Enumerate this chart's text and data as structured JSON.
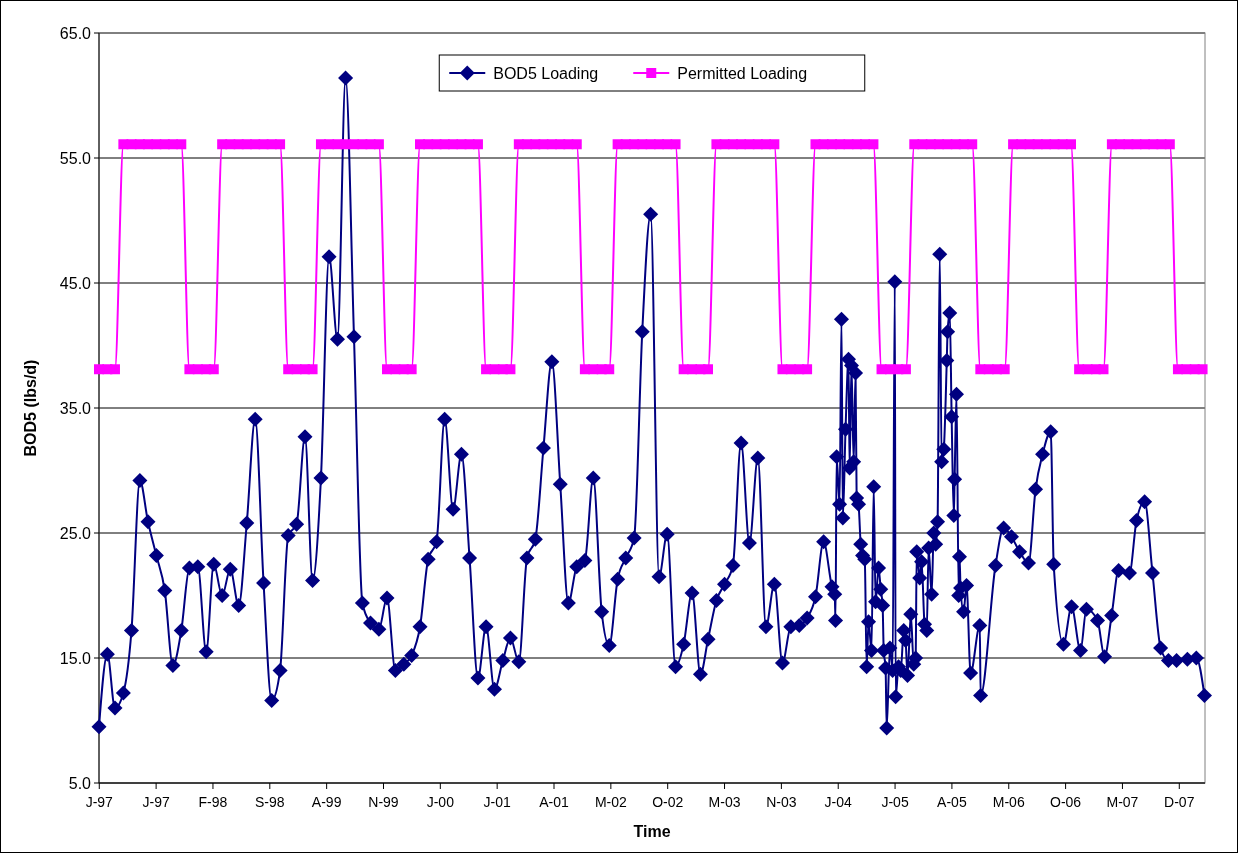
{
  "chart_data": {
    "type": "line",
    "xlabel": "Time",
    "ylabel": "BOD5 (lbs/d)",
    "xlim": [
      "1997-01-01",
      "2008-03-10"
    ],
    "ylim": [
      5,
      65
    ],
    "xticks": [
      {
        "value": "1997-01-02",
        "label": "J-97"
      },
      {
        "value": "1997-07-31",
        "label": "J-97"
      },
      {
        "value": "1998-02-26",
        "label": "F-98"
      },
      {
        "value": "1998-09-24",
        "label": "S-98"
      },
      {
        "value": "1999-04-22",
        "label": "A-99"
      },
      {
        "value": "1999-11-18",
        "label": "N-99"
      },
      {
        "value": "2000-06-15",
        "label": "J-00"
      },
      {
        "value": "2001-01-11",
        "label": "J-01"
      },
      {
        "value": "2001-08-09",
        "label": "A-01"
      },
      {
        "value": "2002-03-07",
        "label": "M-02"
      },
      {
        "value": "2002-10-03",
        "label": "O-02"
      },
      {
        "value": "2003-05-01",
        "label": "M-03"
      },
      {
        "value": "2003-11-27",
        "label": "N-03"
      },
      {
        "value": "2004-06-24",
        "label": "J-04"
      },
      {
        "value": "2005-01-20",
        "label": "J-05"
      },
      {
        "value": "2005-08-18",
        "label": "A-05"
      },
      {
        "value": "2006-03-16",
        "label": "M-06"
      },
      {
        "value": "2006-10-12",
        "label": "O-06"
      },
      {
        "value": "2007-05-10",
        "label": "M-07"
      },
      {
        "value": "2007-12-06",
        "label": "D-07"
      }
    ],
    "yticks": [
      {
        "value": 5,
        "label": "5.0"
      },
      {
        "value": 15,
        "label": "15.0"
      },
      {
        "value": 25,
        "label": "25.0"
      },
      {
        "value": 35,
        "label": "35.0"
      },
      {
        "value": 45,
        "label": "45.0"
      },
      {
        "value": 55,
        "label": "55.0"
      },
      {
        "value": 65,
        "label": "65.0"
      }
    ],
    "grid": "y",
    "legend": "top",
    "line_style": "solid",
    "x": [
      "1997-01",
      "1997-02",
      "1997-03",
      "1997-04",
      "1997-05",
      "1997-06",
      "1997-07",
      "1997-08",
      "1997-09",
      "1997-10",
      "1997-11",
      "1997-12",
      "1998-01",
      "1998-02",
      "1998-03",
      "1998-04",
      "1998-05",
      "1998-06",
      "1998-07",
      "1998-08",
      "1998-09",
      "1998-10",
      "1998-11",
      "1998-12",
      "1999-01",
      "1999-02",
      "1999-03",
      "1999-04",
      "1999-05",
      "1999-06",
      "1999-07",
      "1999-08",
      "1999-09",
      "1999-10",
      "1999-11",
      "1999-12",
      "2000-01",
      "2000-02",
      "2000-03",
      "2000-04",
      "2000-05",
      "2000-06",
      "2000-07",
      "2000-08",
      "2000-09",
      "2000-10",
      "2000-11",
      "2000-12",
      "2001-01",
      "2001-02",
      "2001-03",
      "2001-04",
      "2001-05",
      "2001-06",
      "2001-07",
      "2001-08",
      "2001-09",
      "2001-10",
      "2001-11",
      "2001-12",
      "2002-01",
      "2002-02",
      "2002-03",
      "2002-04",
      "2002-05",
      "2002-06",
      "2002-07",
      "2002-08",
      "2002-09",
      "2002-10",
      "2002-11",
      "2002-12",
      "2003-01",
      "2003-02",
      "2003-03",
      "2003-04",
      "2003-05",
      "2003-06",
      "2003-07",
      "2003-08",
      "2003-09",
      "2003-10",
      "2003-11",
      "2003-12",
      "2004-01",
      "2004-02",
      "2004-03",
      "2004-04",
      "2004-05",
      "2004-06",
      "2004-07",
      "2004-08",
      "2004-09",
      "2004-10",
      "2004-11",
      "2004-12",
      "2005-01",
      "2005-02",
      "2005-03",
      "2005-04",
      "2005-05",
      "2005-06",
      "2005-07",
      "2005-08",
      "2005-09",
      "2005-10",
      "2005-11",
      "2005-12",
      "2006-01",
      "2006-02",
      "2006-03",
      "2006-04",
      "2006-05",
      "2006-06",
      "2006-07",
      "2006-08",
      "2006-09",
      "2006-10",
      "2006-11",
      "2006-12",
      "2007-01",
      "2007-02",
      "2007-03",
      "2007-04",
      "2007-05",
      "2007-06",
      "2007-07",
      "2007-08",
      "2007-09",
      "2007-10",
      "2007-11",
      "2007-12",
      "2008-01",
      "2008-02",
      "2008-03"
    ],
    "series": [
      {
        "name": "BOD5 Loading",
        "color": "#000080",
        "marker": "diamond",
        "x": [
          "1997-01",
          "1997-02",
          "1997-03",
          "1997-04",
          "1997-05",
          "1997-06",
          "1997-07",
          "1997-08",
          "1997-09",
          "1997-10",
          "1997-11",
          "1997-12",
          "1998-01",
          "1998-02",
          "1998-03",
          "1998-04",
          "1998-05",
          "1998-06",
          "1998-07",
          "1998-08",
          "1998-09",
          "1998-10",
          "1998-11",
          "1998-12",
          "1999-01",
          "1999-02",
          "1999-03",
          "1999-04",
          "1999-05",
          "1999-06",
          "1999-07",
          "1999-08",
          "1999-09",
          "1999-10",
          "1999-11",
          "1999-12",
          "2000-01",
          "2000-02",
          "2000-03",
          "2000-04",
          "2000-05",
          "2000-06",
          "2000-07",
          "2000-08",
          "2000-09",
          "2000-10",
          "2000-11",
          "2000-12",
          "2001-01",
          "2001-02",
          "2001-03",
          "2001-04",
          "2001-05",
          "2001-06",
          "2001-07",
          "2001-08",
          "2001-09",
          "2001-10",
          "2001-11",
          "2001-12",
          "2002-01",
          "2002-02",
          "2002-03",
          "2002-04",
          "2002-05",
          "2002-06",
          "2002-07",
          "2002-08",
          "2002-09",
          "2002-10",
          "2002-11",
          "2002-12",
          "2003-01",
          "2003-02",
          "2003-03",
          "2003-04",
          "2003-05",
          "2003-06",
          "2003-07",
          "2003-08",
          "2003-09",
          "2003-10",
          "2003-11",
          "2003-12",
          "2004-01",
          "2004-02",
          "2004-03",
          "2004-04",
          "2004-05",
          "2004-06",
          "2004-06-11",
          "2004-06-14",
          "2004-06-18",
          "2004-06-29",
          "2004-07-06",
          "2004-07-11",
          "2004-07-21",
          "2004-08-01",
          "2004-08-05",
          "2004-08-12",
          "2004-08-20",
          "2004-08-27",
          "2004-08-31",
          "2004-09-07",
          "2004-09-15",
          "2004-09-22",
          "2004-09-30",
          "2004-10-07",
          "2004-10-14",
          "2004-10-25",
          "2004-11-02",
          "2004-11-09",
          "2004-11-20",
          "2004-11-28",
          "2004-12-05",
          "2004-12-09",
          "2004-12-16",
          "2004-12-20",
          "2005-01-01",
          "2005-01-11",
          "2005-01-19",
          "2005-01-22",
          "2005-02-02",
          "2005-02-10",
          "2005-02-21",
          "2005-02-28",
          "2005-03-07",
          "2005-03-19",
          "2005-03-30",
          "2005-04-06",
          "2005-04-10",
          "2005-04-21",
          "2005-04-28",
          "2005-05-09",
          "2005-05-17",
          "2005-05-24",
          "2005-06-04",
          "2005-06-12",
          "2005-06-19",
          "2005-06-26",
          "2005-07-04",
          "2005-07-11",
          "2005-07-19",
          "2005-07-30",
          "2005-08-02",
          "2005-08-10",
          "2005-08-17",
          "2005-08-25",
          "2005-08-28",
          "2005-09-04",
          "2005-09-12",
          "2005-09-15",
          "2005-09-19",
          "2005-09-30",
          "2005-10-11",
          "2005-10-26",
          "2005-11-29",
          "2005-12-02",
          "2006-01-26",
          "2006-02-25",
          "2006-03-26",
          "2006-04-25",
          "2006-05-28",
          "2006-06-23",
          "2006-07-19",
          "2006-08-18",
          "2006-08-29",
          "2006-10-04",
          "2006-11-03",
          "2006-12-06",
          "2006-12-28",
          "2007-02-07",
          "2007-03-05",
          "2007-03-31",
          "2007-04-26",
          "2007-06-05",
          "2007-07-01",
          "2007-07-31",
          "2007-08-29",
          "2007-09-28",
          "2007-10-27",
          "2007-11-26",
          "2008-01-05",
          "2008-02-07",
          "2008-03-08"
        ],
        "values": [
          9.5,
          15.3,
          11.0,
          12.2,
          17.2,
          29.2,
          25.9,
          23.2,
          20.4,
          14.4,
          17.2,
          22.2,
          22.3,
          15.5,
          22.5,
          20.0,
          22.1,
          19.2,
          25.8,
          34.1,
          21.0,
          11.6,
          14.0,
          24.8,
          25.7,
          32.7,
          21.2,
          29.4,
          47.1,
          40.5,
          61.4,
          40.7,
          19.4,
          17.8,
          17.3,
          19.8,
          14.0,
          14.5,
          15.2,
          17.5,
          22.9,
          24.3,
          34.1,
          26.9,
          31.3,
          23.0,
          13.4,
          17.5,
          12.5,
          14.8,
          16.6,
          14.7,
          23.0,
          24.5,
          31.8,
          38.7,
          28.9,
          19.4,
          22.3,
          22.8,
          29.4,
          18.7,
          16.0,
          21.3,
          23.0,
          24.6,
          41.1,
          50.5,
          21.5,
          24.9,
          14.3,
          16.1,
          20.2,
          13.7,
          16.5,
          19.6,
          20.9,
          22.4,
          32.2,
          24.2,
          31.0,
          17.5,
          20.9,
          14.6,
          17.5,
          17.6,
          18.2,
          19.9,
          24.3,
          20.7,
          20.1,
          18.0,
          31.1,
          27.3,
          42.1,
          26.2,
          33.3,
          38.9,
          30.2,
          38.4,
          30.7,
          37.8,
          27.8,
          27.3,
          24.1,
          23.2,
          22.9,
          14.3,
          17.9,
          15.6,
          28.7,
          19.5,
          22.2,
          20.5,
          19.2,
          15.6,
          14.2,
          9.4,
          15.8,
          14.0,
          45.1,
          11.9,
          14.3,
          14.0,
          17.2,
          16.4,
          13.6,
          18.5,
          14.5,
          15.0,
          23.5,
          21.4,
          22.7,
          17.7,
          17.2,
          23.8,
          20.1,
          25.0,
          24.1,
          25.9,
          47.3,
          30.7,
          31.7,
          38.8,
          41.1,
          42.6,
          34.3,
          26.4,
          29.3,
          36.1,
          20.0,
          23.1,
          20.6,
          18.7,
          20.8,
          13.8,
          17.6,
          12.0,
          22.4,
          25.4,
          24.7,
          23.5,
          22.6,
          28.5,
          31.3,
          33.1,
          22.5,
          16.1,
          19.1,
          15.6,
          18.9,
          18.0,
          15.1,
          18.4,
          22.0,
          21.8,
          26.0,
          27.5,
          21.8,
          15.8,
          14.8,
          14.8,
          14.9,
          15.0,
          12.0
        ]
      },
      {
        "name": "Permitted Loading",
        "color": "#ff00ff",
        "marker": "square",
        "values": [
          38.1,
          38.1,
          38.1,
          56.1,
          56.1,
          56.1,
          56.1,
          56.1,
          56.1,
          56.1,
          56.1,
          38.1,
          38.1,
          38.1,
          38.1,
          56.1,
          56.1,
          56.1,
          56.1,
          56.1,
          56.1,
          56.1,
          56.1,
          38.1,
          38.1,
          38.1,
          38.1,
          56.1,
          56.1,
          56.1,
          56.1,
          56.1,
          56.1,
          56.1,
          56.1,
          38.1,
          38.1,
          38.1,
          38.1,
          56.1,
          56.1,
          56.1,
          56.1,
          56.1,
          56.1,
          56.1,
          56.1,
          38.1,
          38.1,
          38.1,
          38.1,
          56.1,
          56.1,
          56.1,
          56.1,
          56.1,
          56.1,
          56.1,
          56.1,
          38.1,
          38.1,
          38.1,
          38.1,
          56.1,
          56.1,
          56.1,
          56.1,
          56.1,
          56.1,
          56.1,
          56.1,
          38.1,
          38.1,
          38.1,
          38.1,
          56.1,
          56.1,
          56.1,
          56.1,
          56.1,
          56.1,
          56.1,
          56.1,
          38.1,
          38.1,
          38.1,
          38.1,
          56.1,
          56.1,
          56.1,
          56.1,
          56.1,
          56.1,
          56.1,
          56.1,
          38.1,
          38.1,
          38.1,
          38.1,
          56.1,
          56.1,
          56.1,
          56.1,
          56.1,
          56.1,
          56.1,
          56.1,
          38.1,
          38.1,
          38.1,
          38.1,
          56.1,
          56.1,
          56.1,
          56.1,
          56.1,
          56.1,
          56.1,
          56.1,
          38.1,
          38.1,
          38.1,
          38.1,
          56.1,
          56.1,
          56.1,
          56.1,
          56.1,
          56.1,
          56.1,
          56.1,
          38.1,
          38.1,
          38.1,
          38.1
        ]
      }
    ]
  }
}
